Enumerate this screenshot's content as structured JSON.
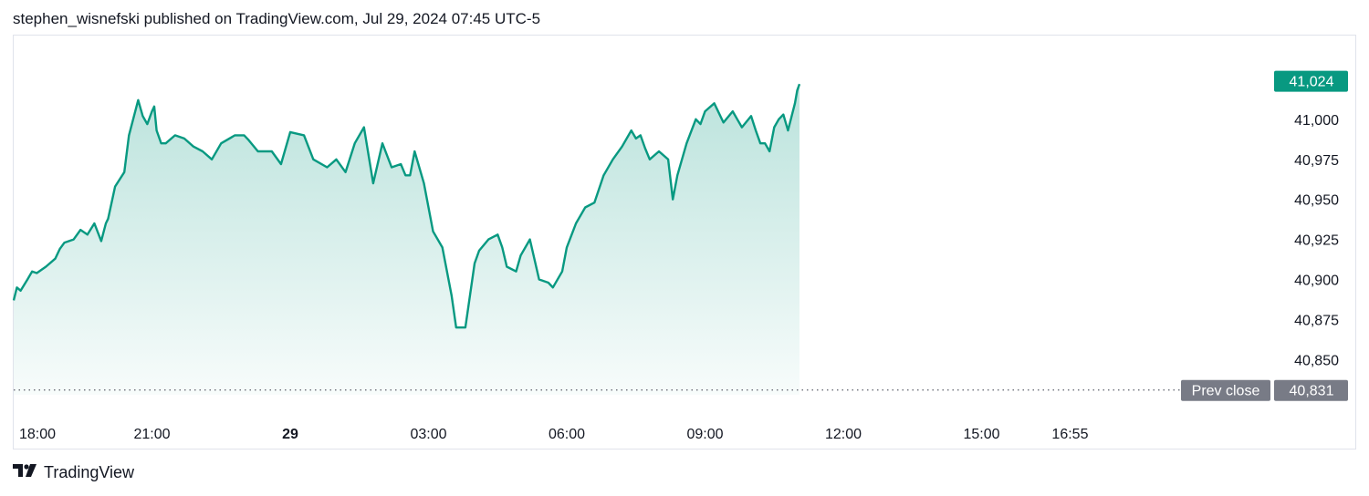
{
  "header": {
    "attribution": "stephen_wisnefski published on TradingView.com, Jul 29, 2024 07:45 UTC-5"
  },
  "footer": {
    "brand": "TradingView"
  },
  "colors": {
    "line": "#089981",
    "badge_last": "#089981",
    "badge_prev": "#787b86",
    "grid_border": "#e0e3eb"
  },
  "chart_data": {
    "type": "area",
    "title": "",
    "x_ticks": [
      "18:00",
      "21:00",
      "29",
      "03:00",
      "06:00",
      "09:00",
      "12:00",
      "15:00",
      "16:55"
    ],
    "x_tick_hours": [
      0,
      3,
      6,
      9,
      12,
      15,
      18,
      21,
      22.92
    ],
    "y_ticks": [
      "41,000",
      "40,975",
      "40,950",
      "40,925",
      "40,900",
      "40,875",
      "40,850"
    ],
    "y_tick_values": [
      41000,
      40975,
      40950,
      40925,
      40900,
      40875,
      40850
    ],
    "ylim": [
      40828,
      41050
    ],
    "grid": false,
    "last_price": {
      "label": "41,024",
      "value": 41024
    },
    "prev_close": {
      "label": "Prev close",
      "value_label": "40,831",
      "value": 40831
    },
    "series": [
      {
        "x": [
          0,
          0.07,
          0.15,
          0.3,
          0.4,
          0.5,
          0.7,
          0.9,
          1.0,
          1.1,
          1.3,
          1.45,
          1.6,
          1.75,
          1.9,
          2.0,
          2.05,
          2.2,
          2.4,
          2.5,
          2.7,
          2.8,
          2.9,
          3.0,
          3.05,
          3.1,
          3.2,
          3.3,
          3.5,
          3.7,
          3.9,
          4.1,
          4.3,
          4.5,
          4.8,
          5.0,
          5.1,
          5.3,
          5.6,
          5.8,
          6.0,
          6.3,
          6.5,
          6.8,
          7.0,
          7.2,
          7.4,
          7.6,
          7.8,
          8.0,
          8.2,
          8.4,
          8.5,
          8.6,
          8.7,
          8.9,
          9.1,
          9.3,
          9.5,
          9.55,
          9.6,
          9.8,
          10.0,
          10.1,
          10.3,
          10.5,
          10.6,
          10.7,
          10.9,
          11.0,
          11.2,
          11.4,
          11.6,
          11.7,
          11.9,
          12.0,
          12.2,
          12.4,
          12.6,
          12.8,
          13.0,
          13.2,
          13.4,
          13.5,
          13.6,
          13.7,
          13.8,
          14.0,
          14.2,
          14.3,
          14.4,
          14.6,
          14.8,
          14.9,
          15.0,
          15.2,
          15.4,
          15.6,
          15.7,
          15.8,
          16.0,
          16.1,
          16.2,
          16.3,
          16.4,
          16.5,
          16.6,
          16.7,
          16.8,
          16.95,
          17.0,
          17.05
        ],
        "values": [
          40887,
          40895,
          40893,
          40900,
          40905,
          40904,
          40908,
          40913,
          40919,
          40923,
          40925,
          40931,
          40928,
          40935,
          40924,
          40935,
          40938,
          40958,
          40967,
          40990,
          41012,
          41002,
          40997,
          41005,
          41008,
          40993,
          40985,
          40985,
          40990,
          40988,
          40983,
          40980,
          40975,
          40985,
          40990,
          40990,
          40987,
          40980,
          40980,
          40972,
          40992,
          40990,
          40975,
          40970,
          40975,
          40967,
          40985,
          40995,
          40960,
          40985,
          40970,
          40972,
          40965,
          40965,
          40980,
          40960,
          40930,
          40920,
          40890,
          40880,
          40870,
          40870,
          40910,
          40918,
          40925,
          40928,
          40920,
          40908,
          40905,
          40915,
          40925,
          40900,
          40898,
          40895,
          40905,
          40920,
          40935,
          40945,
          40948,
          40965,
          40975,
          40983,
          40993,
          40988,
          40990,
          40982,
          40975,
          40980,
          40975,
          40950,
          40965,
          40985,
          41000,
          40997,
          41005,
          41010,
          40998,
          41005,
          41000,
          40995,
          41002,
          40993,
          40985,
          40985,
          40980,
          40995,
          41000,
          41003,
          40993,
          41010,
          41018,
          41022
        ]
      }
    ]
  }
}
